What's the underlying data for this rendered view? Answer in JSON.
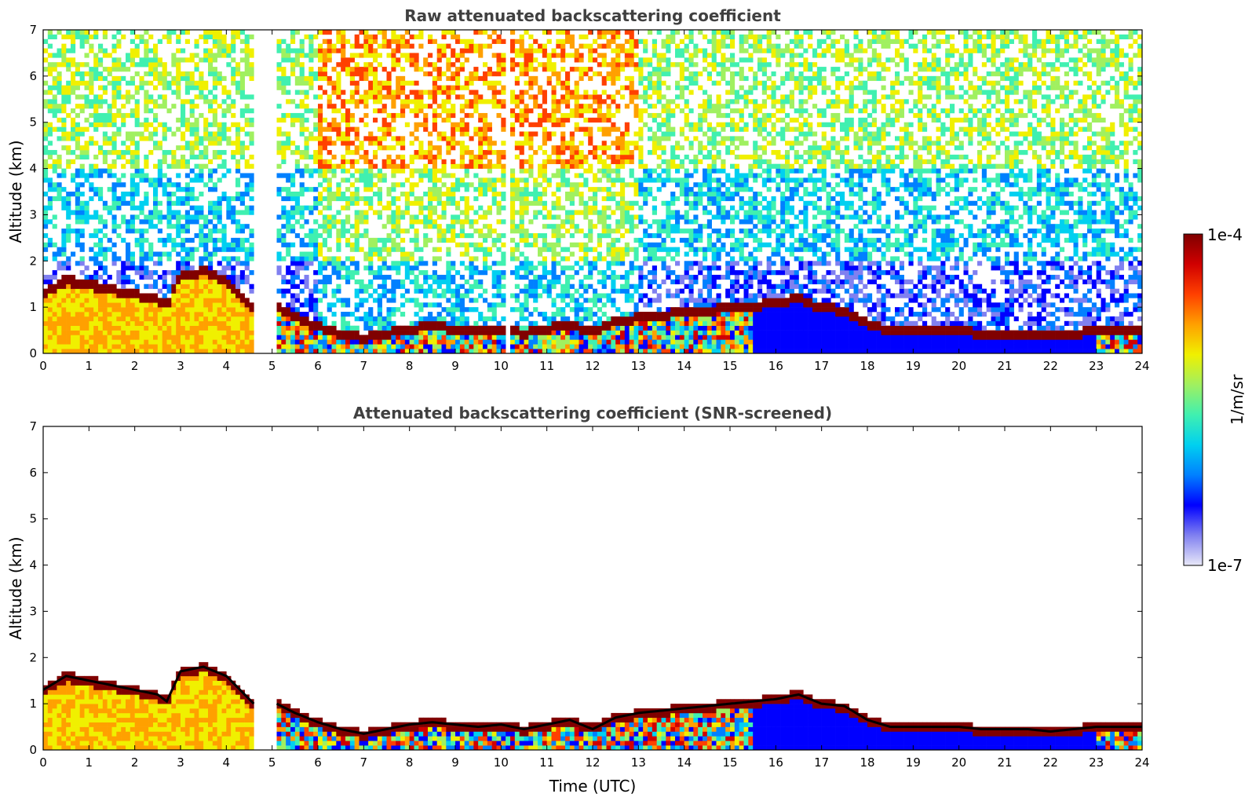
{
  "chart_data": [
    {
      "type": "heatmap",
      "title": "Raw attenuated backscattering coefficient",
      "xlabel": "",
      "ylabel": "Altitude (km)",
      "xlim": [
        0,
        24
      ],
      "ylim": [
        0,
        7
      ],
      "x_ticks": [
        "0",
        "1",
        "2",
        "3",
        "4",
        "5",
        "6",
        "7",
        "8",
        "9",
        "10",
        "11",
        "12",
        "13",
        "14",
        "15",
        "16",
        "17",
        "18",
        "19",
        "20",
        "21",
        "22",
        "23",
        "24"
      ],
      "y_ticks": [
        "0",
        "1",
        "2",
        "3",
        "4",
        "5",
        "6",
        "7"
      ],
      "data_gaps_hours": [
        [
          4.62,
          5.05
        ],
        [
          10.15,
          10.22
        ]
      ],
      "layer_top_km": {
        "hours": [
          0,
          0.5,
          1,
          1.5,
          2,
          2.5,
          2.7,
          3,
          3.5,
          4,
          4.5,
          4.6,
          5.1,
          5.5,
          6,
          6.5,
          7,
          7.5,
          8,
          8.5,
          9,
          9.5,
          10,
          10.5,
          11,
          11.5,
          12,
          12.5,
          13,
          13.5,
          14,
          14.5,
          15,
          15.5,
          16,
          16.5,
          17,
          17.5,
          18,
          18.5,
          19,
          19.5,
          20,
          20.5,
          21,
          21.5,
          22,
          22.5,
          23,
          23.5,
          24
        ],
        "km": [
          1.3,
          1.6,
          1.5,
          1.4,
          1.3,
          1.2,
          1.05,
          1.7,
          1.8,
          1.6,
          1.1,
          1.0,
          1.0,
          0.8,
          0.6,
          0.45,
          0.35,
          0.45,
          0.55,
          0.6,
          0.55,
          0.5,
          0.55,
          0.45,
          0.55,
          0.65,
          0.45,
          0.7,
          0.8,
          0.85,
          0.9,
          0.95,
          1.0,
          1.05,
          1.1,
          1.2,
          1.0,
          0.95,
          0.65,
          0.5,
          0.5,
          0.5,
          0.5,
          0.45,
          0.45,
          0.45,
          0.4,
          0.45,
          0.5,
          0.5,
          0.5
        ]
      },
      "noise_field": "raw"
    },
    {
      "type": "heatmap",
      "title": "Attenuated backscattering coefficient (SNR-screened)",
      "xlabel": "Time (UTC)",
      "ylabel": "Altitude (km)",
      "xlim": [
        0,
        24
      ],
      "ylim": [
        0,
        7
      ],
      "x_ticks": [
        "0",
        "1",
        "2",
        "3",
        "4",
        "5",
        "6",
        "7",
        "8",
        "9",
        "10",
        "11",
        "12",
        "13",
        "14",
        "15",
        "16",
        "17",
        "18",
        "19",
        "20",
        "21",
        "22",
        "23",
        "24"
      ],
      "y_ticks": [
        "0",
        "1",
        "2",
        "3",
        "4",
        "5",
        "6",
        "7"
      ],
      "data_gaps_hours": [
        [
          4.62,
          5.05
        ]
      ],
      "noise_field": "screened"
    }
  ],
  "colorbar": {
    "label": "1/m/sr",
    "max_label": "1e-4",
    "min_label": "1e-7",
    "scale": "log",
    "colors": [
      "#e8e8f8",
      "#8080f0",
      "#0000ff",
      "#0080ff",
      "#00d0f0",
      "#40f0b0",
      "#a0f060",
      "#f0f000",
      "#ffa000",
      "#ff4000",
      "#d00000",
      "#800000"
    ]
  }
}
